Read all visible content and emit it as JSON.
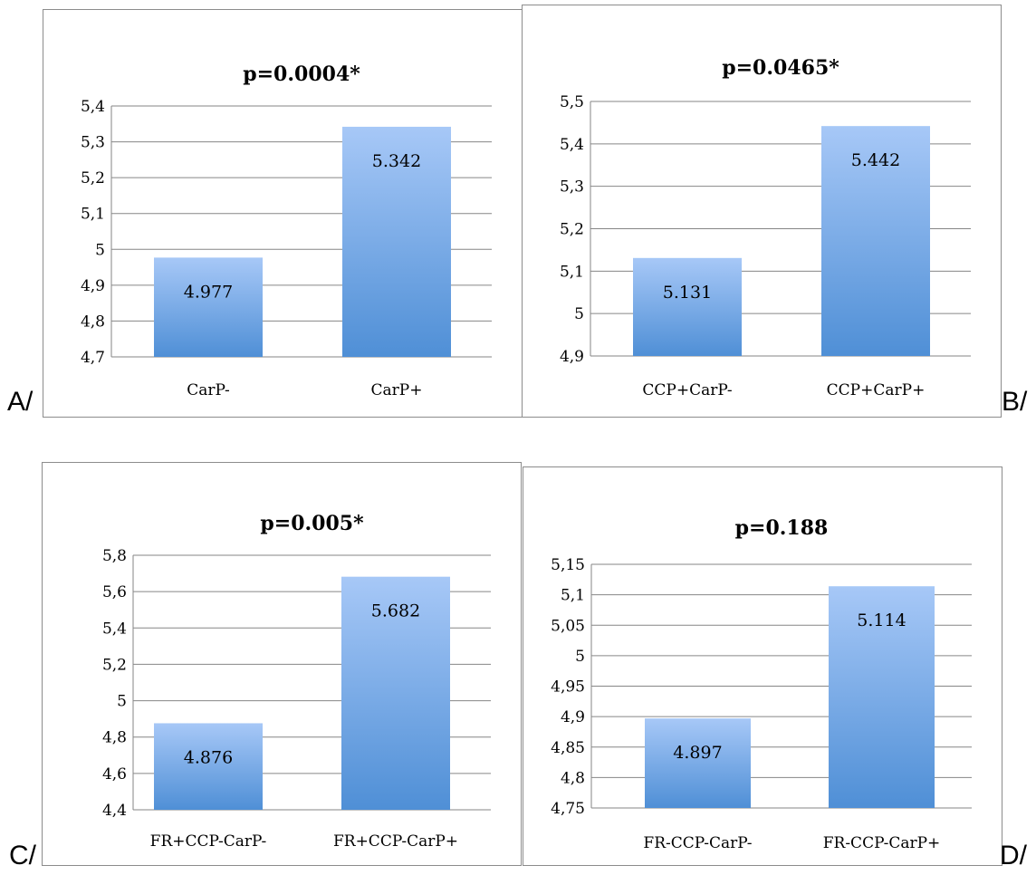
{
  "colors": {
    "bar_top": "#a7c8f7",
    "bar_bottom": "#4f8fd6",
    "grid": "#868686",
    "frame": "#8c8c8c",
    "text": "#000000"
  },
  "panel_letters": [
    "A/",
    "B/",
    "C/",
    "D/"
  ],
  "chart_data": [
    {
      "type": "bar",
      "title": "p=0.0004*",
      "categories": [
        "CarP-",
        "CarP+"
      ],
      "values": [
        4.977,
        5.342
      ],
      "data_labels": [
        "4.977",
        "5.342"
      ],
      "yticks": [
        "4,7",
        "4,8",
        "4,9",
        "5",
        "5,1",
        "5,2",
        "5,3",
        "5,4"
      ],
      "ylim": [
        4.7,
        5.4
      ],
      "grid": true
    },
    {
      "type": "bar",
      "title": "p=0.0465*",
      "categories": [
        "CCP+CarP-",
        "CCP+CarP+"
      ],
      "values": [
        5.131,
        5.442
      ],
      "data_labels": [
        "5.131",
        "5.442"
      ],
      "yticks": [
        "4,9",
        "5",
        "5,1",
        "5,2",
        "5,3",
        "5,4",
        "5,5"
      ],
      "ylim": [
        4.9,
        5.5
      ],
      "grid": true
    },
    {
      "type": "bar",
      "title": "p=0.005*",
      "categories": [
        "FR+CCP-CarP-",
        "FR+CCP-CarP+"
      ],
      "values": [
        4.876,
        5.682
      ],
      "data_labels": [
        "4.876",
        "5.682"
      ],
      "yticks": [
        "4,4",
        "4,6",
        "4,8",
        "5",
        "5,2",
        "5,4",
        "5,6",
        "5,8"
      ],
      "ylim": [
        4.4,
        5.8
      ],
      "grid": true
    },
    {
      "type": "bar",
      "title": "p=0.188",
      "categories": [
        "FR-CCP-CarP-",
        "FR-CCP-CarP+"
      ],
      "values": [
        4.897,
        5.114
      ],
      "data_labels": [
        "4.897",
        "5.114"
      ],
      "yticks": [
        "4,75",
        "4,8",
        "4,85",
        "4,9",
        "4,95",
        "5",
        "5,05",
        "5,1",
        "5,15"
      ],
      "ylim": [
        4.75,
        5.15
      ],
      "grid": true
    }
  ]
}
